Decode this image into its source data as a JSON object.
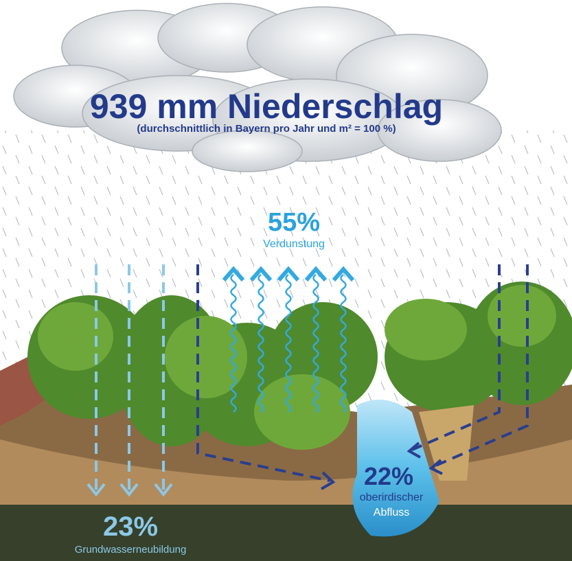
{
  "title": "939 mm Niederschlag",
  "subtitle": "(durchschnittlich in Bayern pro Jahr und m² = 100 %)",
  "evaporation": {
    "percent": "55%",
    "label": "Verdunstung"
  },
  "groundwater": {
    "percent": "23%",
    "label": "Grundwasserneubildung"
  },
  "runoff": {
    "percent": "22%",
    "label_line1": "oberirdischer",
    "label_line2": "Abfluss"
  }
}
